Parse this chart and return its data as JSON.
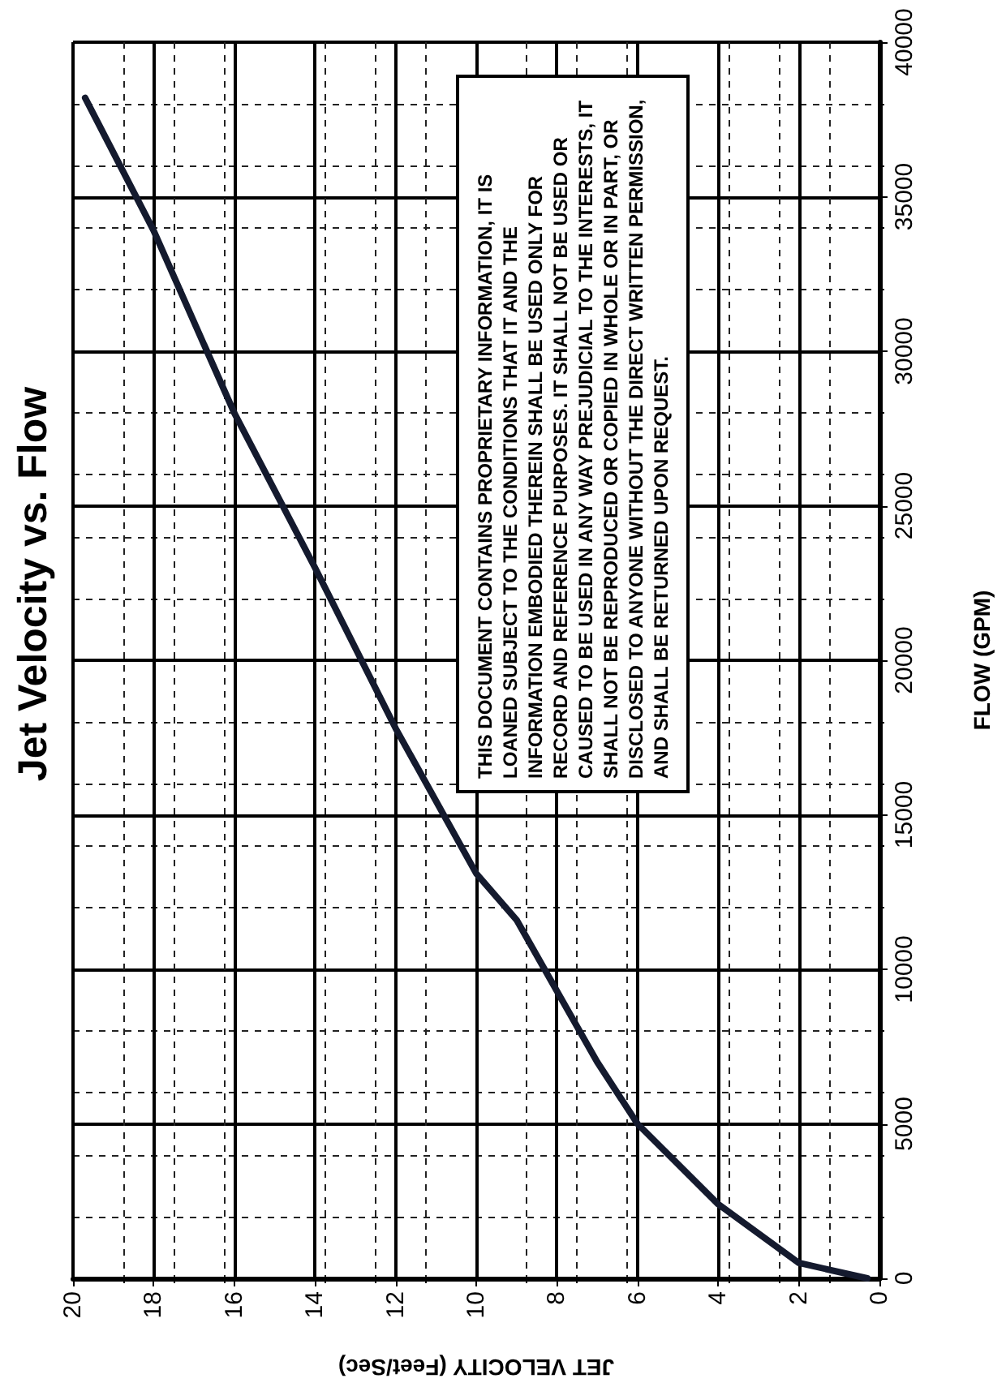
{
  "chart_data": {
    "type": "line",
    "title": "Jet Velocity vs. Flow",
    "xlabel": "JET VELOCITY (Feet/Sec)",
    "ylabel": "FLOW (GPM)",
    "annotations": [
      "THIS DOCUMENT CONTAINS PROPRIETARY INFORMATION, IT IS LOANED SUBJECT TO THE CONDITIONS THAT IT AND THE INFORMATION EMBODIED THEREIN SHALL BE USED ONLY FOR RECORD AND REFERENCE PURPOSES. IT SHALL NOT BE USED OR CAUSED TO BE USED IN ANY WAY PREJUDICIAL TO THE INTERESTS, IT SHALL NOT BE REPRODUCED OR COPIED IN WHOLE OR IN PART, OR DISCLOSED TO ANYONE WITHOUT THE DIRECT WRITTEN PERMISSION, AND SHALL BE RETURNED UPON REQUEST."
    ],
    "series": [
      {
        "color": "#141a2e",
        "x": [
          0.3,
          2,
          4,
          6,
          7,
          8,
          9,
          10,
          12,
          14,
          16,
          18,
          19.7
        ],
        "values": [
          0,
          500,
          2400,
          5000,
          7000,
          9300,
          11600,
          13100,
          17800,
          23000,
          28000,
          33900,
          38200
        ]
      }
    ],
    "xlim": [
      20,
      0
    ],
    "xticks": [
      20,
      18,
      16,
      14,
      12,
      10,
      8,
      6,
      4,
      2,
      0
    ],
    "ylim": [
      0,
      40000
    ],
    "yticks": [
      0,
      5000,
      10000,
      15000,
      20000,
      25000,
      30000,
      35000,
      40000
    ],
    "grid": true,
    "marker": "none",
    "line_style": "solid"
  }
}
